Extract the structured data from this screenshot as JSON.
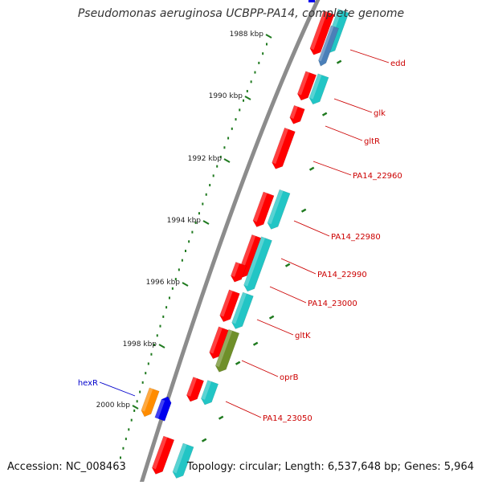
{
  "title": "Pseudomonas aeruginosa UCBPP-PA14, complete genome",
  "footer": {
    "accession": "Accession: NC_008463",
    "summary": "Topology: circular; Length: 6,537,648 bp; Genes: 5,964"
  },
  "colors": {
    "backbone": "#8c8c8c",
    "tick": "#1f7a1f",
    "cds": "#ff0000",
    "rna_feature": "#22c5c5",
    "blue_feature": "#4a7fb8",
    "olive_feature": "#6f8f2a",
    "orange_feature": "#ff8c00",
    "blue_gene": "#0000ee",
    "label_red": "#cc0000",
    "label_blue": "#0000cc"
  },
  "ticks": [
    {
      "label": "1988 kbp"
    },
    {
      "label": "1990 kbp"
    },
    {
      "label": "1992 kbp"
    },
    {
      "label": "1994 kbp"
    },
    {
      "label": "1996 kbp"
    },
    {
      "label": "1998 kbp"
    },
    {
      "label": "2000 kbp"
    }
  ],
  "gene_labels": [
    {
      "text": "edd",
      "color": "#cc0000"
    },
    {
      "text": "glk",
      "color": "#cc0000"
    },
    {
      "text": "gltR",
      "color": "#cc0000"
    },
    {
      "text": "PA14_22960",
      "color": "#cc0000"
    },
    {
      "text": "PA14_22980",
      "color": "#cc0000"
    },
    {
      "text": "PA14_22990",
      "color": "#cc0000"
    },
    {
      "text": "PA14_23000",
      "color": "#cc0000"
    },
    {
      "text": "gltK",
      "color": "#cc0000"
    },
    {
      "text": "oprB",
      "color": "#cc0000"
    },
    {
      "text": "PA14_23050",
      "color": "#cc0000"
    },
    {
      "text": "hexR",
      "color": "#0000cc"
    }
  ]
}
